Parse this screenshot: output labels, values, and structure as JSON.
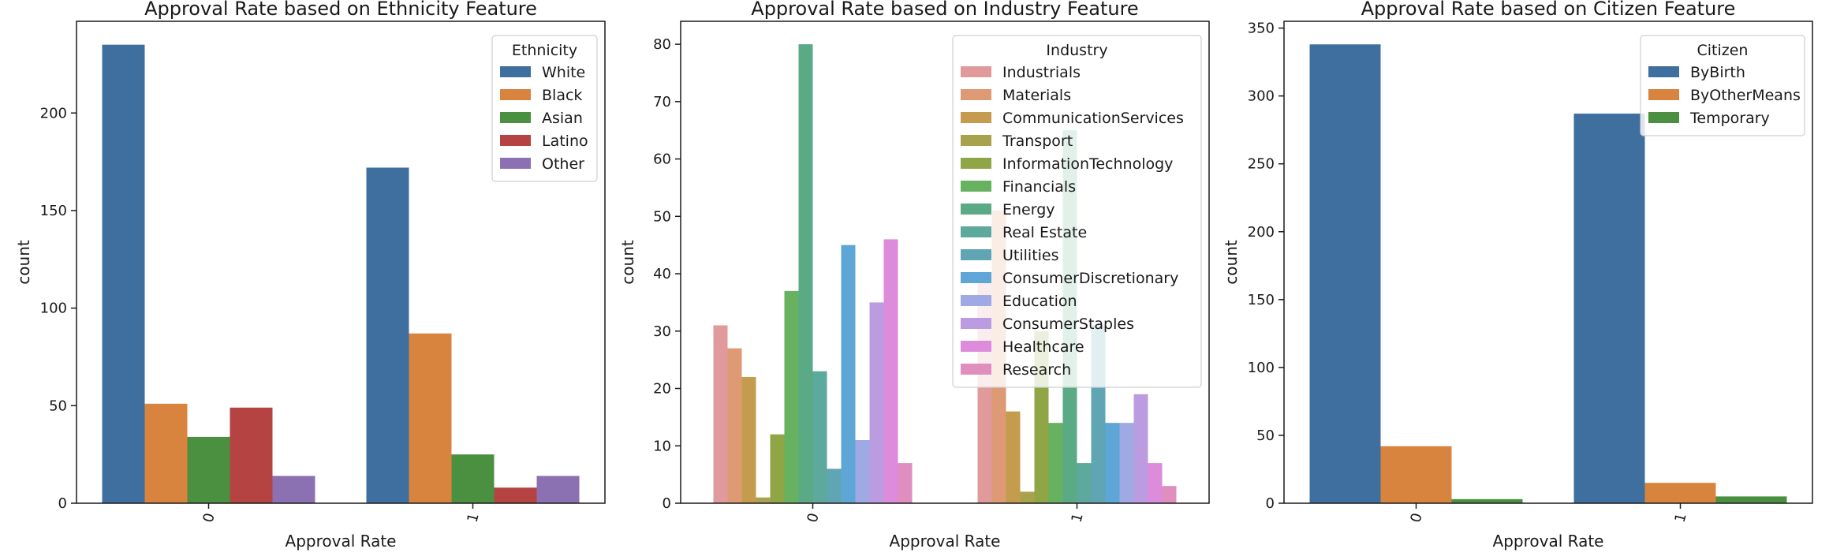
{
  "chart_data": [
    {
      "type": "bar",
      "title": "Approval Rate based on Ethnicity Feature",
      "xlabel": "Approval Rate",
      "ylabel": "count",
      "categories": [
        "0",
        "1"
      ],
      "ylim": [
        0,
        247
      ],
      "yticks": [
        0,
        50,
        100,
        150,
        200
      ],
      "legend_title": "Ethnicity",
      "legend_position": "top-right",
      "series": [
        {
          "name": "White",
          "color": "#3e6f9e",
          "values": [
            235,
            172
          ]
        },
        {
          "name": "Black",
          "color": "#d8843f",
          "values": [
            51,
            87
          ]
        },
        {
          "name": "Asian",
          "color": "#4a9040",
          "values": [
            34,
            25
          ]
        },
        {
          "name": "Latino",
          "color": "#b54342",
          "values": [
            49,
            8
          ]
        },
        {
          "name": "Other",
          "color": "#8c71b2",
          "values": [
            14,
            14
          ]
        }
      ]
    },
    {
      "type": "bar",
      "title": "Approval Rate based on Industry Feature",
      "xlabel": "Approval Rate",
      "ylabel": "count",
      "categories": [
        "0",
        "1"
      ],
      "ylim": [
        0,
        84
      ],
      "yticks": [
        0,
        10,
        20,
        30,
        40,
        50,
        60,
        70,
        80
      ],
      "legend_title": "Industry",
      "legend_position": "top-right",
      "series": [
        {
          "name": "Industrials",
          "color": "#e09a9c",
          "values": [
            31,
            40
          ]
        },
        {
          "name": "Materials",
          "color": "#dd9a74",
          "values": [
            27,
            51
          ]
        },
        {
          "name": "CommunicationServices",
          "color": "#c59c4e",
          "values": [
            22,
            16
          ]
        },
        {
          "name": "Transport",
          "color": "#a9a24c",
          "values": [
            1,
            2
          ]
        },
        {
          "name": "InformationTechnology",
          "color": "#90a545",
          "values": [
            12,
            30
          ]
        },
        {
          "name": "Financials",
          "color": "#67b260",
          "values": [
            37,
            14
          ]
        },
        {
          "name": "Energy",
          "color": "#5aaa86",
          "values": [
            80,
            65
          ]
        },
        {
          "name": "Real Estate",
          "color": "#5ea99d",
          "values": [
            23,
            7
          ]
        },
        {
          "name": "Utilities",
          "color": "#5fa5b4",
          "values": [
            6,
            31
          ]
        },
        {
          "name": "ConsumerDiscretionary",
          "color": "#5ea6d6",
          "values": [
            45,
            14
          ]
        },
        {
          "name": "Education",
          "color": "#9fa9e3",
          "values": [
            11,
            14
          ]
        },
        {
          "name": "ConsumerStaples",
          "color": "#bc9ce0",
          "values": [
            35,
            19
          ]
        },
        {
          "name": "Healthcare",
          "color": "#dd8bdb",
          "values": [
            46,
            7
          ]
        },
        {
          "name": "Research",
          "color": "#e08dbf",
          "values": [
            7,
            3
          ]
        }
      ]
    },
    {
      "type": "bar",
      "title": "Approval Rate based on Citizen Feature",
      "xlabel": "Approval Rate",
      "ylabel": "count",
      "categories": [
        "0",
        "1"
      ],
      "ylim": [
        0,
        355
      ],
      "yticks": [
        0,
        50,
        100,
        150,
        200,
        250,
        300,
        350
      ],
      "legend_title": "Citizen",
      "legend_position": "top-right",
      "series": [
        {
          "name": "ByBirth",
          "color": "#3e6f9e",
          "values": [
            338,
            287
          ]
        },
        {
          "name": "ByOtherMeans",
          "color": "#d8843f",
          "values": [
            42,
            15
          ]
        },
        {
          "name": "Temporary",
          "color": "#4a9040",
          "values": [
            3,
            5
          ]
        }
      ]
    }
  ]
}
